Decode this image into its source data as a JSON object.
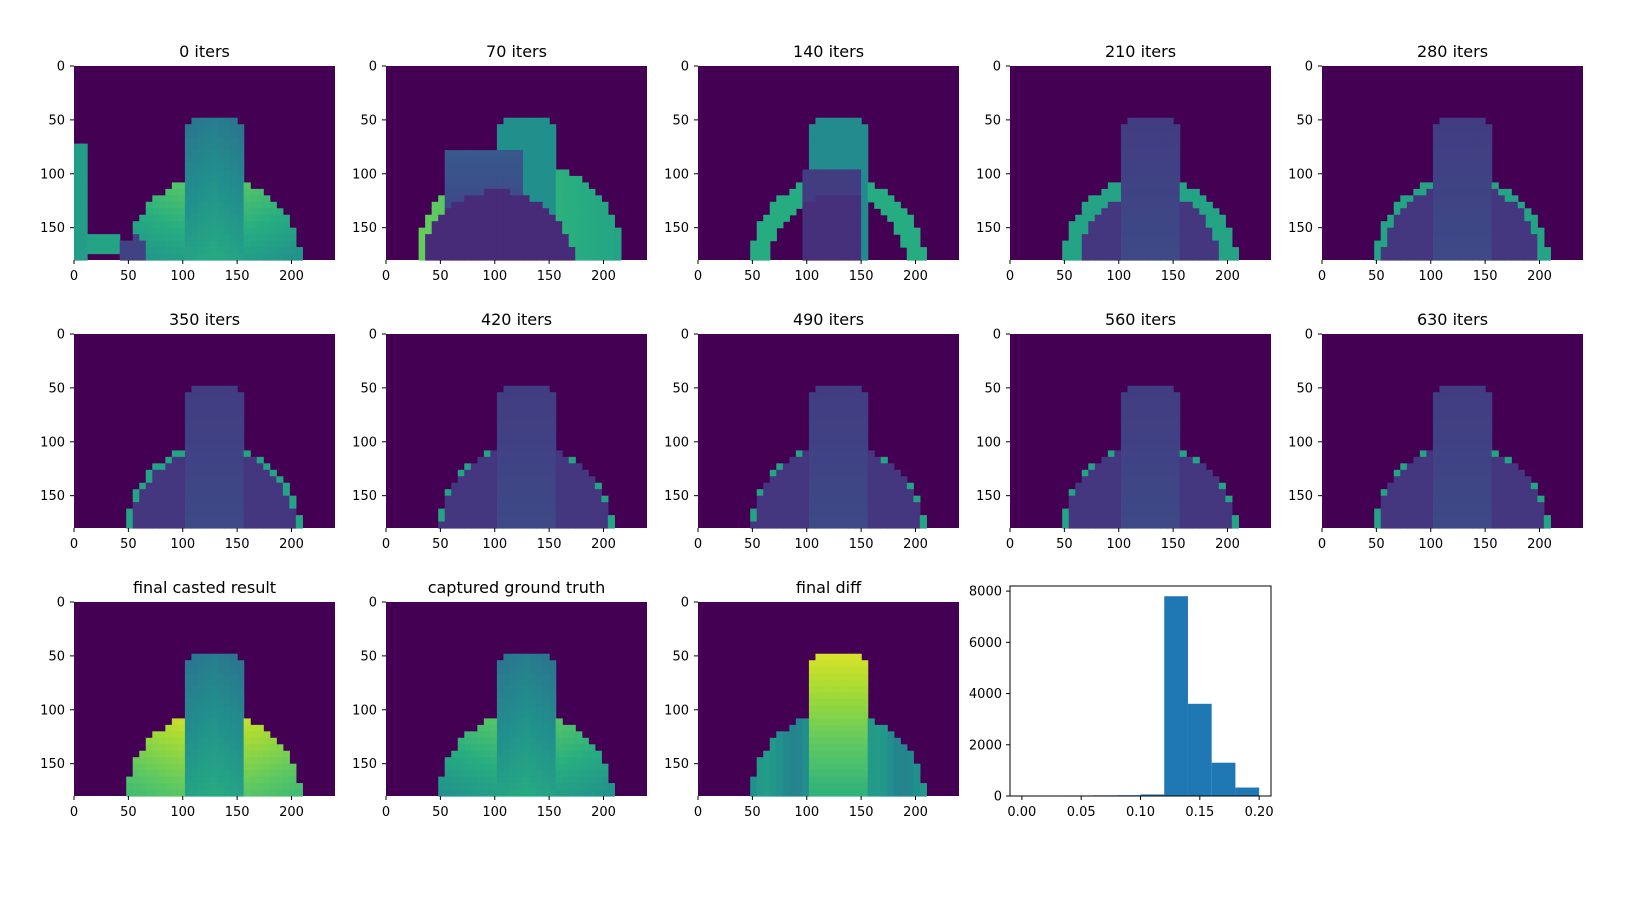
{
  "figure": {
    "colormap": "viridis",
    "background_color": "#440154",
    "histogram_color": "#1f77b4",
    "image_x_ticks": [
      "0",
      "50",
      "100",
      "150",
      "200"
    ],
    "image_y_ticks": [
      "0",
      "50",
      "100",
      "150"
    ],
    "image_shape": [
      180,
      240
    ]
  },
  "chart_data": [
    {
      "type": "heatmap",
      "title": "0 iters",
      "xlim": [
        0,
        240
      ],
      "ylim": [
        180,
        0
      ],
      "render": {
        "mode": "raw",
        "seed": 1
      }
    },
    {
      "type": "heatmap",
      "title": "70 iters",
      "xlim": [
        0,
        240
      ],
      "ylim": [
        180,
        0
      ],
      "render": {
        "mode": "it70",
        "seed": 2
      }
    },
    {
      "type": "heatmap",
      "title": "140 iters",
      "xlim": [
        0,
        240
      ],
      "ylim": [
        180,
        0
      ],
      "render": {
        "mode": "it140",
        "seed": 3
      }
    },
    {
      "type": "heatmap",
      "title": "210 iters",
      "xlim": [
        0,
        240
      ],
      "ylim": [
        180,
        0
      ],
      "render": {
        "mode": "prog",
        "ring": 0.32,
        "seed": 4
      }
    },
    {
      "type": "heatmap",
      "title": "280 iters",
      "xlim": [
        0,
        240
      ],
      "ylim": [
        180,
        0
      ],
      "render": {
        "mode": "prog",
        "ring": 0.15,
        "seed": 5
      }
    },
    {
      "type": "heatmap",
      "title": "350 iters",
      "xlim": [
        0,
        240
      ],
      "ylim": [
        180,
        0
      ],
      "render": {
        "mode": "prog",
        "ring": 0.1,
        "seed": 6
      }
    },
    {
      "type": "heatmap",
      "title": "420 iters",
      "xlim": [
        0,
        240
      ],
      "ylim": [
        180,
        0
      ],
      "render": {
        "mode": "prog",
        "ring": 0.05,
        "seed": 7
      }
    },
    {
      "type": "heatmap",
      "title": "490 iters",
      "xlim": [
        0,
        240
      ],
      "ylim": [
        180,
        0
      ],
      "render": {
        "mode": "prog",
        "ring": 0.05,
        "seed": 8
      }
    },
    {
      "type": "heatmap",
      "title": "560 iters",
      "xlim": [
        0,
        240
      ],
      "ylim": [
        180,
        0
      ],
      "render": {
        "mode": "prog",
        "ring": 0.06,
        "seed": 9
      }
    },
    {
      "type": "heatmap",
      "title": "630 iters",
      "xlim": [
        0,
        240
      ],
      "ylim": [
        180,
        0
      ],
      "render": {
        "mode": "prog",
        "ring": 0.06,
        "seed": 10
      }
    },
    {
      "type": "heatmap",
      "title": "final casted result",
      "xlim": [
        0,
        240
      ],
      "ylim": [
        180,
        0
      ],
      "render": {
        "mode": "result",
        "seed": 11
      }
    },
    {
      "type": "heatmap",
      "title": "captured ground truth",
      "xlim": [
        0,
        240
      ],
      "ylim": [
        180,
        0
      ],
      "render": {
        "mode": "gt",
        "seed": 12
      }
    },
    {
      "type": "heatmap",
      "title": "final diff",
      "xlim": [
        0,
        240
      ],
      "ylim": [
        180,
        0
      ],
      "render": {
        "mode": "diff",
        "seed": 13
      }
    },
    {
      "type": "bar",
      "title": "",
      "xlabel": "",
      "ylabel": "",
      "bins": [
        [
          0.0,
          0.02
        ],
        [
          0.02,
          0.04
        ],
        [
          0.04,
          0.06
        ],
        [
          0.06,
          0.08
        ],
        [
          0.08,
          0.1
        ],
        [
          0.1,
          0.12
        ],
        [
          0.12,
          0.14
        ],
        [
          0.14,
          0.16
        ],
        [
          0.16,
          0.18
        ],
        [
          0.18,
          0.2
        ]
      ],
      "values": [
        5,
        5,
        20,
        25,
        30,
        60,
        7800,
        3600,
        1300,
        330
      ],
      "xlim": [
        -0.01,
        0.21
      ],
      "ylim": [
        0,
        8200
      ],
      "xticks": [
        "0.00",
        "0.05",
        "0.10",
        "0.15",
        "0.20"
      ],
      "yticks": [
        "0",
        "2000",
        "4000",
        "6000",
        "8000"
      ]
    }
  ]
}
